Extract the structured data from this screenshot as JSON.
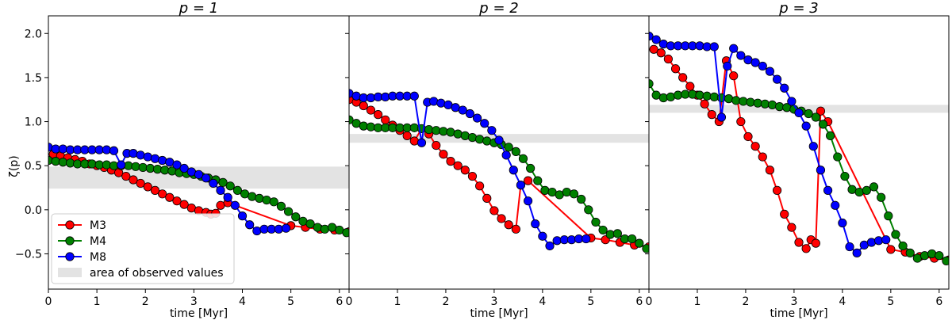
{
  "figure": {
    "ylabel": "ζ(p)",
    "legend_position": "lower-left",
    "legend": [
      {
        "label": "M3",
        "color": "#ff0000",
        "type": "line-marker"
      },
      {
        "label": "M4",
        "color": "#008000",
        "type": "line-marker"
      },
      {
        "label": "M8",
        "color": "#0000ff",
        "type": "line-marker"
      },
      {
        "label": "area of observed values",
        "color": "#e3e3e3",
        "type": "patch"
      }
    ]
  },
  "chart_data": [
    {
      "type": "line",
      "title": "p = 1",
      "xlabel": "time [Myr]",
      "ylabel": "ζ(p)",
      "xlim": [
        0,
        6.2
      ],
      "ylim": [
        -0.9,
        2.2
      ],
      "xticks": [
        "0",
        "1",
        "2",
        "3",
        "4",
        "5",
        "6"
      ],
      "yticks": [
        "−0.5",
        "0.0",
        "0.5",
        "1.0",
        "1.5",
        "2.0"
      ],
      "band": [
        0.24,
        0.49
      ],
      "grid": false,
      "series": [
        {
          "name": "M3",
          "color": "#ff0000",
          "x": [
            0.1,
            0.25,
            0.4,
            0.55,
            0.7,
            0.85,
            1.0,
            1.15,
            1.3,
            1.45,
            1.6,
            1.75,
            1.9,
            2.05,
            2.2,
            2.35,
            2.5,
            2.65,
            2.8,
            2.95,
            3.1,
            3.25,
            3.35,
            3.45,
            3.55,
            3.7,
            5.0,
            5.3,
            5.6,
            5.9,
            6.2
          ],
          "y": [
            0.63,
            0.61,
            0.59,
            0.57,
            0.55,
            0.52,
            0.5,
            0.48,
            0.45,
            0.42,
            0.38,
            0.34,
            0.3,
            0.26,
            0.22,
            0.18,
            0.14,
            0.1,
            0.06,
            0.02,
            -0.01,
            -0.03,
            -0.05,
            -0.04,
            0.05,
            0.08,
            -0.18,
            -0.2,
            -0.22,
            -0.23,
            -0.25
          ]
        },
        {
          "name": "M4",
          "color": "#008000",
          "x": [
            0.0,
            0.15,
            0.3,
            0.45,
            0.6,
            0.75,
            0.9,
            1.05,
            1.2,
            1.35,
            1.5,
            1.65,
            1.8,
            1.95,
            2.1,
            2.25,
            2.4,
            2.55,
            2.7,
            2.85,
            3.0,
            3.15,
            3.3,
            3.45,
            3.6,
            3.75,
            3.9,
            4.05,
            4.2,
            4.35,
            4.5,
            4.65,
            4.8,
            4.95,
            5.1,
            5.25,
            5.4,
            5.55,
            5.7,
            5.85,
            6.0,
            6.15
          ],
          "y": [
            0.56,
            0.55,
            0.54,
            0.53,
            0.52,
            0.52,
            0.52,
            0.51,
            0.51,
            0.5,
            0.5,
            0.5,
            0.49,
            0.48,
            0.47,
            0.46,
            0.45,
            0.44,
            0.42,
            0.41,
            0.4,
            0.38,
            0.36,
            0.34,
            0.31,
            0.27,
            0.22,
            0.18,
            0.15,
            0.13,
            0.11,
            0.09,
            0.04,
            -0.02,
            -0.08,
            -0.13,
            -0.16,
            -0.2,
            -0.22,
            -0.2,
            -0.23,
            -0.26
          ]
        },
        {
          "name": "M8",
          "color": "#0000ff",
          "x": [
            0.0,
            0.15,
            0.3,
            0.45,
            0.6,
            0.75,
            0.9,
            1.05,
            1.2,
            1.35,
            1.5,
            1.62,
            1.75,
            1.9,
            2.05,
            2.2,
            2.35,
            2.5,
            2.65,
            2.8,
            2.95,
            3.1,
            3.25,
            3.4,
            3.55,
            3.7,
            3.85,
            4.0,
            4.15,
            4.3,
            4.45,
            4.6,
            4.75,
            4.9
          ],
          "y": [
            0.71,
            0.69,
            0.69,
            0.68,
            0.68,
            0.68,
            0.68,
            0.68,
            0.68,
            0.67,
            0.51,
            0.64,
            0.64,
            0.62,
            0.6,
            0.58,
            0.56,
            0.54,
            0.51,
            0.47,
            0.43,
            0.4,
            0.36,
            0.3,
            0.22,
            0.14,
            0.05,
            -0.07,
            -0.17,
            -0.24,
            -0.22,
            -0.22,
            -0.22,
            -0.21
          ]
        }
      ]
    },
    {
      "type": "line",
      "title": "p = 2",
      "xlabel": "time [Myr]",
      "ylabel": "",
      "xlim": [
        0,
        6.2
      ],
      "ylim": [
        -0.9,
        2.2
      ],
      "xticks": [
        "0",
        "1",
        "2",
        "3",
        "4",
        "5",
        "6"
      ],
      "yticks": [],
      "band": [
        0.76,
        0.86
      ],
      "grid": false,
      "series": [
        {
          "name": "M3",
          "color": "#ff0000",
          "x": [
            0.0,
            0.15,
            0.3,
            0.45,
            0.6,
            0.75,
            0.9,
            1.05,
            1.2,
            1.35,
            1.5,
            1.65,
            1.8,
            1.95,
            2.1,
            2.25,
            2.4,
            2.55,
            2.7,
            2.85,
            3.0,
            3.15,
            3.3,
            3.45,
            3.55,
            3.7,
            5.0,
            5.3,
            5.6,
            5.9,
            6.2
          ],
          "y": [
            1.25,
            1.22,
            1.18,
            1.13,
            1.08,
            1.02,
            0.96,
            0.9,
            0.84,
            0.78,
            0.92,
            0.86,
            0.73,
            0.63,
            0.55,
            0.5,
            0.45,
            0.38,
            0.27,
            0.13,
            -0.01,
            -0.1,
            -0.17,
            -0.22,
            0.28,
            0.33,
            -0.32,
            -0.34,
            -0.37,
            -0.4,
            -0.42
          ]
        },
        {
          "name": "M4",
          "color": "#008000",
          "x": [
            0.0,
            0.15,
            0.3,
            0.45,
            0.6,
            0.75,
            0.9,
            1.05,
            1.2,
            1.35,
            1.5,
            1.65,
            1.8,
            1.95,
            2.1,
            2.25,
            2.4,
            2.55,
            2.7,
            2.85,
            3.0,
            3.15,
            3.3,
            3.45,
            3.6,
            3.75,
            3.9,
            4.05,
            4.2,
            4.35,
            4.5,
            4.65,
            4.8,
            4.95,
            5.1,
            5.25,
            5.4,
            5.55,
            5.7,
            5.85,
            6.0,
            6.15
          ],
          "y": [
            1.02,
            0.98,
            0.95,
            0.94,
            0.93,
            0.93,
            0.93,
            0.93,
            0.93,
            0.93,
            0.92,
            0.91,
            0.9,
            0.89,
            0.88,
            0.86,
            0.84,
            0.82,
            0.8,
            0.78,
            0.76,
            0.74,
            0.71,
            0.66,
            0.58,
            0.47,
            0.33,
            0.22,
            0.2,
            0.17,
            0.2,
            0.18,
            0.12,
            0.0,
            -0.14,
            -0.23,
            -0.28,
            -0.27,
            -0.33,
            -0.33,
            -0.38,
            -0.44
          ]
        },
        {
          "name": "M8",
          "color": "#0000ff",
          "x": [
            0.0,
            0.15,
            0.3,
            0.45,
            0.6,
            0.75,
            0.9,
            1.05,
            1.2,
            1.35,
            1.5,
            1.62,
            1.75,
            1.9,
            2.05,
            2.2,
            2.35,
            2.5,
            2.65,
            2.8,
            2.95,
            3.1,
            3.25,
            3.4,
            3.55,
            3.7,
            3.85,
            4.0,
            4.15,
            4.3,
            4.45,
            4.6,
            4.75,
            4.9
          ],
          "y": [
            1.32,
            1.29,
            1.27,
            1.27,
            1.28,
            1.28,
            1.29,
            1.29,
            1.29,
            1.29,
            0.76,
            1.22,
            1.23,
            1.21,
            1.19,
            1.16,
            1.13,
            1.09,
            1.04,
            0.98,
            0.9,
            0.79,
            0.62,
            0.45,
            0.28,
            0.1,
            -0.16,
            -0.3,
            -0.41,
            -0.35,
            -0.34,
            -0.34,
            -0.33,
            -0.33
          ]
        }
      ]
    },
    {
      "type": "line",
      "title": "p = 3",
      "xlabel": "time [Myr]",
      "ylabel": "",
      "xlim": [
        0,
        6.2
      ],
      "ylim": [
        -0.9,
        2.2
      ],
      "xticks": [
        "0",
        "1",
        "2",
        "3",
        "4",
        "5",
        "6"
      ],
      "yticks": [],
      "band": [
        1.1,
        1.19
      ],
      "grid": false,
      "series": [
        {
          "name": "M3",
          "color": "#ff0000",
          "x": [
            0.1,
            0.25,
            0.4,
            0.55,
            0.7,
            0.85,
            1.0,
            1.15,
            1.3,
            1.45,
            1.6,
            1.75,
            1.9,
            2.05,
            2.2,
            2.35,
            2.5,
            2.65,
            2.8,
            2.95,
            3.1,
            3.25,
            3.35,
            3.45,
            3.55,
            3.7,
            5.0,
            5.3,
            5.6,
            5.9,
            6.2
          ],
          "y": [
            1.82,
            1.78,
            1.71,
            1.6,
            1.5,
            1.4,
            1.3,
            1.2,
            1.08,
            1.0,
            1.69,
            1.52,
            1.0,
            0.83,
            0.72,
            0.6,
            0.45,
            0.22,
            -0.05,
            -0.2,
            -0.37,
            -0.44,
            -0.34,
            -0.38,
            1.12,
            1.0,
            -0.45,
            -0.48,
            -0.53,
            -0.55,
            -0.57
          ]
        },
        {
          "name": "M4",
          "color": "#008000",
          "x": [
            0.0,
            0.15,
            0.3,
            0.45,
            0.6,
            0.75,
            0.9,
            1.05,
            1.2,
            1.35,
            1.5,
            1.65,
            1.8,
            1.95,
            2.1,
            2.25,
            2.4,
            2.55,
            2.7,
            2.85,
            3.0,
            3.15,
            3.3,
            3.45,
            3.6,
            3.75,
            3.9,
            4.05,
            4.2,
            4.35,
            4.5,
            4.65,
            4.8,
            4.95,
            5.1,
            5.25,
            5.4,
            5.55,
            5.7,
            5.85,
            6.0,
            6.15
          ],
          "y": [
            1.43,
            1.3,
            1.27,
            1.28,
            1.3,
            1.31,
            1.31,
            1.3,
            1.29,
            1.28,
            1.27,
            1.26,
            1.24,
            1.23,
            1.22,
            1.21,
            1.2,
            1.19,
            1.17,
            1.16,
            1.14,
            1.12,
            1.09,
            1.05,
            0.97,
            0.84,
            0.6,
            0.38,
            0.23,
            0.2,
            0.22,
            0.26,
            0.14,
            -0.07,
            -0.28,
            -0.41,
            -0.49,
            -0.55,
            -0.52,
            -0.5,
            -0.52,
            -0.58
          ]
        },
        {
          "name": "M8",
          "color": "#0000ff",
          "x": [
            0.0,
            0.15,
            0.3,
            0.45,
            0.6,
            0.75,
            0.9,
            1.05,
            1.2,
            1.35,
            1.5,
            1.62,
            1.75,
            1.9,
            2.05,
            2.2,
            2.35,
            2.5,
            2.65,
            2.8,
            2.95,
            3.1,
            3.25,
            3.4,
            3.55,
            3.7,
            3.85,
            4.0,
            4.15,
            4.3,
            4.45,
            4.6,
            4.75,
            4.9
          ],
          "y": [
            1.97,
            1.93,
            1.88,
            1.86,
            1.86,
            1.86,
            1.86,
            1.86,
            1.85,
            1.85,
            1.05,
            1.63,
            1.83,
            1.75,
            1.7,
            1.67,
            1.63,
            1.57,
            1.48,
            1.38,
            1.23,
            1.1,
            0.95,
            0.72,
            0.45,
            0.22,
            0.05,
            -0.15,
            -0.42,
            -0.49,
            -0.4,
            -0.37,
            -0.35,
            -0.34
          ]
        }
      ]
    }
  ]
}
